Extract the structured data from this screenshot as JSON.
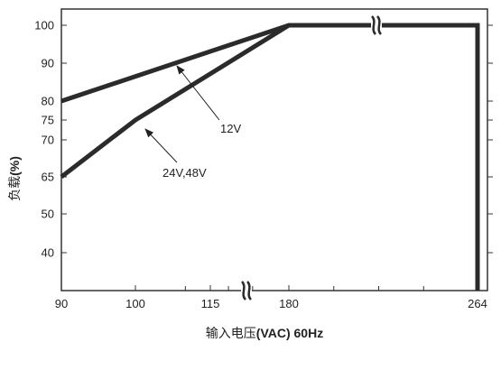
{
  "chart_data": {
    "type": "line",
    "xlabel_cjk": "输入电压",
    "xlabel_unit": "(VAC) 60Hz",
    "ylabel_cjk": "负载",
    "ylabel_unit": "(%)",
    "x_ticks": [
      {
        "value": 90,
        "label": "90"
      },
      {
        "value": 100,
        "label": "100"
      },
      {
        "value": 115,
        "label": "115"
      },
      {
        "value": 180,
        "label": "180"
      },
      {
        "value": 264,
        "label": "264"
      }
    ],
    "y_ticks": [
      {
        "value": 100,
        "label": "100"
      },
      {
        "value": 90,
        "label": "90"
      },
      {
        "value": 80,
        "label": "80"
      },
      {
        "value": 75,
        "label": "75"
      },
      {
        "value": 70,
        "label": "70"
      },
      {
        "value": 65,
        "label": "65"
      },
      {
        "value": 50,
        "label": "50"
      },
      {
        "value": 40,
        "label": "40"
      }
    ],
    "series": [
      {
        "name": "12V",
        "points": [
          [
            90,
            80
          ],
          [
            180,
            100
          ],
          [
            264,
            100
          ],
          [
            264,
            30
          ]
        ]
      },
      {
        "name": "24V,48V",
        "points": [
          [
            90,
            65
          ],
          [
            100,
            75
          ],
          [
            180,
            100
          ]
        ]
      }
    ],
    "annotations": [
      {
        "label": "12V",
        "series": "12V"
      },
      {
        "label": "24V,48V",
        "series": "24V,48V"
      }
    ],
    "break_symbol": "≈",
    "colors": {
      "line": "#2b2b2b",
      "axis": "#333333",
      "text": "#222222"
    }
  }
}
